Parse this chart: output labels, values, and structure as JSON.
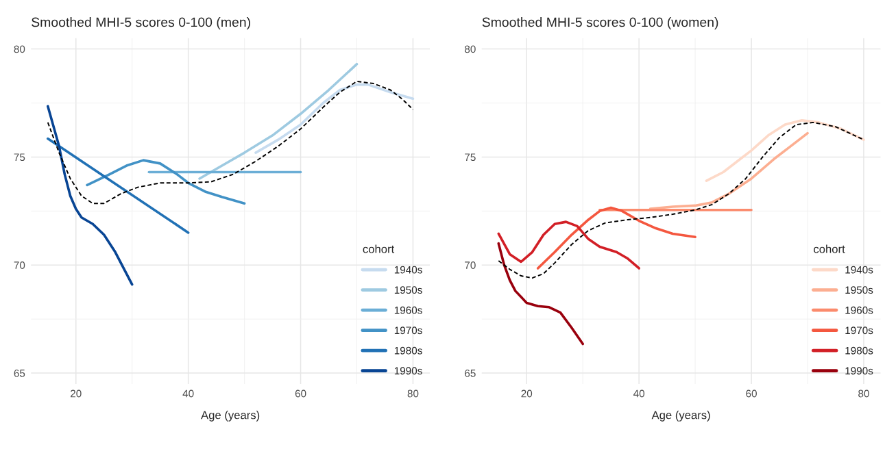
{
  "chart_data": [
    {
      "type": "line",
      "title": "Smoothed MHI-5 scores 0-100 (men)",
      "xlabel": "Age (years)",
      "legend_title": "cohort",
      "legend": "bottom right",
      "grid": true,
      "xlim": [
        12,
        83
      ],
      "ylim": [
        64.5,
        80.5
      ],
      "xticks": [
        20,
        40,
        60,
        80
      ],
      "yticks": [
        65,
        70,
        75,
        80
      ],
      "series": [
        {
          "name": "1940s",
          "color": "#c6dbef",
          "x": [
            52,
            56,
            60,
            64,
            67,
            70,
            72,
            76,
            80
          ],
          "values": [
            75.2,
            75.8,
            76.5,
            77.5,
            78.1,
            78.35,
            78.35,
            78.0,
            77.7
          ]
        },
        {
          "name": "1950s",
          "color": "#9ecae1",
          "x": [
            42,
            46,
            50,
            55,
            60,
            65,
            70
          ],
          "values": [
            74.0,
            74.6,
            75.2,
            76.0,
            77.0,
            78.1,
            79.3
          ]
        },
        {
          "name": "1960s",
          "color": "#6baed6",
          "x": [
            33,
            60
          ],
          "values": [
            74.3,
            74.3
          ]
        },
        {
          "name": "1970s",
          "color": "#4292c6",
          "x": [
            22,
            26,
            29,
            32,
            35,
            38,
            40,
            43,
            46,
            50
          ],
          "values": [
            73.7,
            74.2,
            74.6,
            74.85,
            74.7,
            74.2,
            73.8,
            73.4,
            73.15,
            72.85
          ]
        },
        {
          "name": "1980s",
          "color": "#2171b5",
          "x": [
            15,
            40
          ],
          "values": [
            75.85,
            71.5
          ]
        },
        {
          "name": "1990s",
          "color": "#084594",
          "x": [
            15,
            17,
            18,
            19,
            20,
            21,
            23,
            25,
            27,
            30
          ],
          "values": [
            77.35,
            75.5,
            74.2,
            73.2,
            72.6,
            72.2,
            71.9,
            71.4,
            70.6,
            69.1
          ]
        },
        {
          "color": "#000000",
          "line_style": "dashed",
          "x": [
            15,
            17,
            19,
            21,
            23,
            25,
            28,
            31,
            35,
            40,
            44,
            48,
            52,
            56,
            60,
            64,
            67,
            70,
            73,
            76,
            78,
            80
          ],
          "values": [
            76.6,
            75.2,
            74.0,
            73.2,
            72.85,
            72.85,
            73.3,
            73.6,
            73.8,
            73.8,
            73.85,
            74.2,
            74.8,
            75.5,
            76.3,
            77.3,
            78.0,
            78.5,
            78.4,
            78.1,
            77.7,
            77.2
          ]
        }
      ]
    },
    {
      "type": "line",
      "title": "Smoothed MHI-5 scores 0-100 (women)",
      "xlabel": "Age (years)",
      "legend_title": "cohort",
      "legend": "bottom right",
      "grid": true,
      "xlim": [
        12,
        83
      ],
      "ylim": [
        64.5,
        80.5
      ],
      "xticks": [
        20,
        40,
        60,
        80
      ],
      "yticks": [
        65,
        70,
        75,
        80
      ],
      "series": [
        {
          "name": "1940s",
          "color": "#fdd9c8",
          "x": [
            52,
            55,
            58,
            60,
            63,
            66,
            69,
            72,
            76,
            80
          ],
          "values": [
            73.9,
            74.3,
            74.9,
            75.3,
            76.0,
            76.5,
            76.7,
            76.6,
            76.3,
            75.8
          ]
        },
        {
          "name": "1950s",
          "color": "#fcae91",
          "x": [
            42,
            46,
            50,
            53,
            56,
            60,
            64,
            67,
            70
          ],
          "values": [
            72.6,
            72.7,
            72.75,
            72.9,
            73.3,
            74.0,
            74.9,
            75.5,
            76.1
          ]
        },
        {
          "name": "1960s",
          "color": "#fb8b6d",
          "x": [
            33,
            60
          ],
          "values": [
            72.55,
            72.55
          ]
        },
        {
          "name": "1970s",
          "color": "#f4573f",
          "x": [
            22,
            25,
            28,
            31,
            33,
            35,
            37,
            40,
            43,
            46,
            50
          ],
          "values": [
            69.85,
            70.6,
            71.4,
            72.1,
            72.5,
            72.65,
            72.5,
            72.05,
            71.7,
            71.45,
            71.3
          ]
        },
        {
          "name": "1980s",
          "color": "#d21f26",
          "x": [
            15,
            17,
            19,
            21,
            23,
            25,
            27,
            29,
            31,
            33,
            36,
            38,
            40
          ],
          "values": [
            71.45,
            70.5,
            70.15,
            70.6,
            71.4,
            71.9,
            72.0,
            71.8,
            71.2,
            70.85,
            70.6,
            70.3,
            69.85
          ]
        },
        {
          "name": "1990s",
          "color": "#99000d",
          "x": [
            15,
            16,
            17,
            18,
            20,
            22,
            24,
            26,
            28,
            30
          ],
          "values": [
            71.0,
            70.0,
            69.3,
            68.8,
            68.25,
            68.1,
            68.05,
            67.8,
            67.1,
            66.35
          ]
        },
        {
          "color": "#000000",
          "line_style": "dashed",
          "x": [
            15,
            17,
            19,
            21,
            23,
            25,
            28,
            31,
            34,
            38,
            42,
            46,
            50,
            53,
            56,
            59,
            62,
            65,
            68,
            71,
            75,
            80
          ],
          "values": [
            70.2,
            69.8,
            69.5,
            69.4,
            69.6,
            70.1,
            70.95,
            71.6,
            71.95,
            72.1,
            72.2,
            72.35,
            72.55,
            72.8,
            73.3,
            74.0,
            75.0,
            75.9,
            76.5,
            76.6,
            76.4,
            75.8
          ]
        }
      ]
    }
  ]
}
